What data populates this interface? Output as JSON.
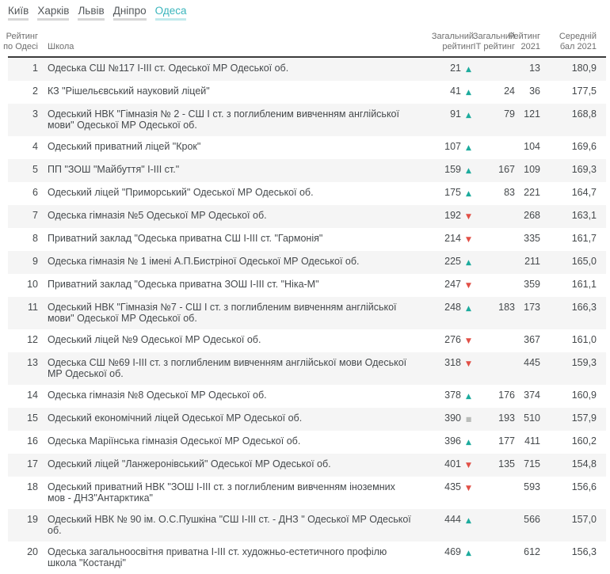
{
  "nav": {
    "items": [
      {
        "label": "Київ",
        "active": false
      },
      {
        "label": "Харків",
        "active": false
      },
      {
        "label": "Львів",
        "active": false
      },
      {
        "label": "Дніпро",
        "active": false
      },
      {
        "label": "Одеса",
        "active": true
      }
    ]
  },
  "table": {
    "headers": {
      "rank": "Рейтинг\nпо Одесі",
      "school": "Школа",
      "total": "Загальний\nрейтинг",
      "it": "Загальний\nІТ рейтинг",
      "y2021": "Рейтинг\n2021",
      "score": "Середній\nбал 2021"
    },
    "rows": [
      {
        "rank": "1",
        "school": "Одеська СШ №117 І-ІІІ ст. Одеської МР Одеської об.",
        "total": "21",
        "trend": "up",
        "it": "",
        "y2021": "13",
        "score": "180,9"
      },
      {
        "rank": "2",
        "school": "КЗ \"Рішельєвський науковий ліцей\"",
        "total": "41",
        "trend": "up",
        "it": "24",
        "y2021": "36",
        "score": "177,5"
      },
      {
        "rank": "3",
        "school": "Одеський НВК \"Гімназія № 2 - СШ І ст. з поглибленим вивченням англійської мови\" Одеської МР Одеської об.",
        "total": "91",
        "trend": "up",
        "it": "79",
        "y2021": "121",
        "score": "168,8"
      },
      {
        "rank": "4",
        "school": "Одеський приватний ліцей \"Крок\"",
        "total": "107",
        "trend": "up",
        "it": "",
        "y2021": "104",
        "score": "169,6"
      },
      {
        "rank": "5",
        "school": "ПП \"ЗОШ \"Майбуття\" І-ІІІ ст.\"",
        "total": "159",
        "trend": "up",
        "it": "167",
        "y2021": "109",
        "score": "169,3"
      },
      {
        "rank": "6",
        "school": "Одеський ліцей \"Приморський\" Одеської МР Одеської об.",
        "total": "175",
        "trend": "up",
        "it": "83",
        "y2021": "221",
        "score": "164,7"
      },
      {
        "rank": "7",
        "school": "Одеська гімназія №5 Одеської МР Одеської об.",
        "total": "192",
        "trend": "down",
        "it": "",
        "y2021": "268",
        "score": "163,1"
      },
      {
        "rank": "8",
        "school": "Приватний заклад \"Одеська приватна СШ І-ІІІ ст. \"Гармонія\"",
        "total": "214",
        "trend": "down",
        "it": "",
        "y2021": "335",
        "score": "161,7"
      },
      {
        "rank": "9",
        "school": "Одеська гімназія № 1 імені А.П.Бистріної Одеської МР Одеської об.",
        "total": "225",
        "trend": "up",
        "it": "",
        "y2021": "211",
        "score": "165,0"
      },
      {
        "rank": "10",
        "school": "Приватний заклад \"Одеська приватна ЗОШ І-ІІІ ст. \"Ніка-М\"",
        "total": "247",
        "trend": "down",
        "it": "",
        "y2021": "359",
        "score": "161,1"
      },
      {
        "rank": "11",
        "school": "Одеський НВК \"Гімназія №7 - СШ І ст. з поглибленим вивченням англійської мови\" Одеської МР Одеської об.",
        "total": "248",
        "trend": "up",
        "it": "183",
        "y2021": "173",
        "score": "166,3"
      },
      {
        "rank": "12",
        "school": "Одеський ліцей №9 Одеської МР Одеської об.",
        "total": "276",
        "trend": "down",
        "it": "",
        "y2021": "367",
        "score": "161,0"
      },
      {
        "rank": "13",
        "school": "Одеська СШ №69 І-ІІІ ст. з поглибленим вивченням англійської мови Одеської МР Одеської об.",
        "total": "318",
        "trend": "down",
        "it": "",
        "y2021": "445",
        "score": "159,3"
      },
      {
        "rank": "14",
        "school": "Одеська гімназія №8 Одеської МР Одеської об.",
        "total": "378",
        "trend": "up",
        "it": "176",
        "y2021": "374",
        "score": "160,9"
      },
      {
        "rank": "15",
        "school": "Одеський економічний ліцей Одеської МР Одеської об.",
        "total": "390",
        "trend": "same",
        "it": "193",
        "y2021": "510",
        "score": "157,9"
      },
      {
        "rank": "16",
        "school": "Одеська Маріїнська гімназія Одеської МР Одеської об.",
        "total": "396",
        "trend": "up",
        "it": "177",
        "y2021": "411",
        "score": "160,2"
      },
      {
        "rank": "17",
        "school": "Одеський ліцей \"Ланжеронівський\" Одеської МР Одеської об.",
        "total": "401",
        "trend": "down",
        "it": "135",
        "y2021": "715",
        "score": "154,8"
      },
      {
        "rank": "18",
        "school": "Одеський приватний НВК \"ЗОШ І-ІІІ ст. з поглибленим вивченням іноземних мов - ДНЗ\"Антарктика\"",
        "total": "435",
        "trend": "down",
        "it": "",
        "y2021": "593",
        "score": "156,6"
      },
      {
        "rank": "19",
        "school": "Одеський НВК № 90 ім. О.С.Пушкіна \"СШ І-ІІІ ст. - ДНЗ \" Одеської МР Одеської об.",
        "total": "444",
        "trend": "up",
        "it": "",
        "y2021": "566",
        "score": "157,0"
      },
      {
        "rank": "20",
        "school": "Одеська загальноосвітня приватна І-ІІІ ст. художньо-естетичного профілю школа \"Костанді\"",
        "total": "469",
        "trend": "up",
        "it": "",
        "y2021": "612",
        "score": "156,3"
      }
    ]
  },
  "trend_glyphs": {
    "up": "▲",
    "down": "▼",
    "same": "■"
  },
  "colors": {
    "accent_teal": "#3ab5bc",
    "accent_teal_light": "#c2eaec",
    "link_gray": "#54585b",
    "link_underline": "#d6d6d6",
    "trend_up": "#1dab9d",
    "trend_down": "#e14f46",
    "trend_same": "#b9bcb9",
    "stripe": "#f5f5f5",
    "header_text": "#6e6e6e",
    "body_text": "#45494c",
    "header_border": "#3c3c3c"
  }
}
